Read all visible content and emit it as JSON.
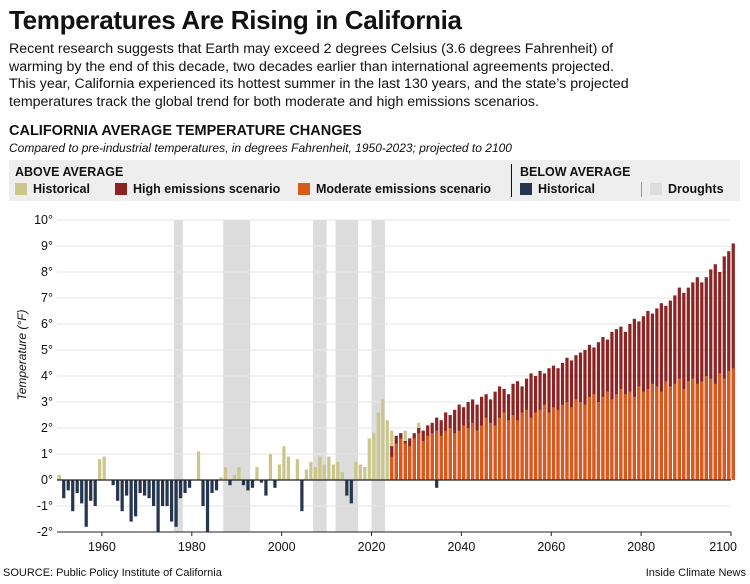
{
  "header": {
    "title": "Temperatures Are Rising in California",
    "intro": "Recent research suggests that Earth may exceed 2 degrees Celsius (3.6 degrees Fahrenheit) of\nwarming by the end of this decade, two decades earlier than international agreements projected.\nThis year, California experienced its hottest summer in the last 130 years, and the state’s projected\ntemperatures track the global trend for both moderate and high emissions scenarios."
  },
  "legend": {
    "above_label": "ABOVE AVERAGE",
    "below_label": "BELOW AVERAGE",
    "items": {
      "historical_above": "Historical",
      "high": "High emissions scenario",
      "moderate": "Moderate emissions scenario",
      "historical_below": "Historical",
      "droughts": "Droughts"
    },
    "colors": {
      "historical_above": "#cbc68a",
      "high": "#8d2424",
      "moderate": "#d9581c",
      "historical_below": "#263650",
      "droughts": "#dcdcdc"
    }
  },
  "footer": {
    "source": "SOURCE: Public Policy Institute of California",
    "credit": "Inside Climate News"
  },
  "chart_data": {
    "type": "bar",
    "title": "CALIFORNIA AVERAGE TEMPERATURE CHANGES",
    "subtitle": "Compared to pre-industrial temperatures, in degrees Fahrenheit, 1950-2023; projected to 2100",
    "ylabel": "Temperature (°F)",
    "xlabel": "",
    "xlim": [
      1950,
      2100
    ],
    "ylim": [
      -2,
      10
    ],
    "x_ticks": [
      1960,
      1980,
      2000,
      2020,
      2040,
      2060,
      2080,
      2100
    ],
    "y_ticks": [
      {
        "value": 10,
        "label": "10°"
      },
      {
        "value": 9,
        "label": "9°"
      },
      {
        "value": 8,
        "label": "8°"
      },
      {
        "value": 7,
        "label": "7°"
      },
      {
        "value": 6,
        "label": "6°"
      },
      {
        "value": 5,
        "label": "5°"
      },
      {
        "value": 4,
        "label": "4°"
      },
      {
        "value": 3,
        "label": "3°"
      },
      {
        "value": 2,
        "label": "2°"
      },
      {
        "value": 1,
        "label": "1°"
      },
      {
        "value": 0,
        "label": "0°"
      },
      {
        "value": -1,
        "label": "-1°"
      },
      {
        "value": -2,
        "label": "-2°"
      }
    ],
    "droughts": [
      [
        1976,
        1977
      ],
      [
        1987,
        1992
      ],
      [
        2007,
        2009
      ],
      [
        2012,
        2016
      ],
      [
        2020,
        2022
      ]
    ],
    "historical": {
      "start_year": 1950,
      "values": [
        0.2,
        -0.7,
        -0.4,
        -1.2,
        -0.5,
        -0.9,
        -1.8,
        -0.8,
        -1.0,
        0.8,
        0.9,
        0.0,
        -0.2,
        -0.8,
        -1.2,
        -0.6,
        -1.6,
        -1.4,
        -0.5,
        -0.6,
        -0.7,
        -1.0,
        -2.0,
        -1.0,
        -1.0,
        -1.6,
        -1.8,
        -0.7,
        -0.5,
        -0.3,
        0.0,
        1.1,
        -1.0,
        -2.0,
        -0.5,
        -0.4,
        0.1,
        0.5,
        -0.2,
        0.2,
        0.5,
        -0.2,
        -0.4,
        -0.3,
        0.5,
        -0.1,
        -0.6,
        1.0,
        -0.3,
        0.6,
        1.3,
        0.9,
        0.0,
        0.8,
        -1.2,
        0.4,
        0.7,
        0.5,
        0.9,
        0.6,
        0.9,
        0.6,
        0.7,
        0.3,
        -0.6,
        -0.9,
        0.7,
        0.6,
        0.5,
        1.6,
        1.8,
        2.6,
        3.1,
        2.3,
        1.9,
        1.7,
        1.8,
        1.9,
        1.5,
        1.2,
        2.2,
        1.9,
        2.0,
        1.1,
        -0.3
      ]
    },
    "projection_start_year": 2024,
    "moderate": [
      0.9,
      1.4,
      1.6,
      1.4,
      1.3,
      1.6,
      1.8,
      1.5,
      1.7,
      1.8,
      1.9,
      1.7,
      1.9,
      2.0,
      1.8,
      1.9,
      2.1,
      2.0,
      2.2,
      1.9,
      2.1,
      2.4,
      2.2,
      2.1,
      2.4,
      2.6,
      2.3,
      2.5,
      2.3,
      2.6,
      2.7,
      2.4,
      2.6,
      2.7,
      2.9,
      2.6,
      2.8,
      2.7,
      2.9,
      3.0,
      2.8,
      3.1,
      3.0,
      2.9,
      3.2,
      3.3,
      3.0,
      3.2,
      3.4,
      3.1,
      3.3,
      3.5,
      3.3,
      3.4,
      3.2,
      3.6,
      3.4,
      3.5,
      3.7,
      3.6,
      3.4,
      3.8,
      3.6,
      3.7,
      3.9,
      3.5,
      3.8,
      3.9,
      3.7,
      3.8,
      4.0,
      3.9,
      3.7,
      4.1,
      3.9,
      4.2,
      4.3
    ],
    "high": [
      1.3,
      1.7,
      1.8,
      1.5,
      1.6,
      1.8,
      2.0,
      1.9,
      2.1,
      2.2,
      2.4,
      2.3,
      2.6,
      2.5,
      2.7,
      2.9,
      2.8,
      3.0,
      3.1,
      2.9,
      3.2,
      3.3,
      3.1,
      3.4,
      3.6,
      3.5,
      3.3,
      3.7,
      3.8,
      3.6,
      3.9,
      4.1,
      4.0,
      4.2,
      4.1,
      4.3,
      4.4,
      4.3,
      4.5,
      4.7,
      4.6,
      4.8,
      4.9,
      5.0,
      5.2,
      5.1,
      5.3,
      5.5,
      5.4,
      5.7,
      5.8,
      5.9,
      5.7,
      6.0,
      6.2,
      6.1,
      6.3,
      6.5,
      6.4,
      6.6,
      6.8,
      6.7,
      6.9,
      7.1,
      7.4,
      7.2,
      7.4,
      7.6,
      7.8,
      7.6,
      7.8,
      8.1,
      8.3,
      8.0,
      8.6,
      8.8,
      9.1
    ]
  }
}
